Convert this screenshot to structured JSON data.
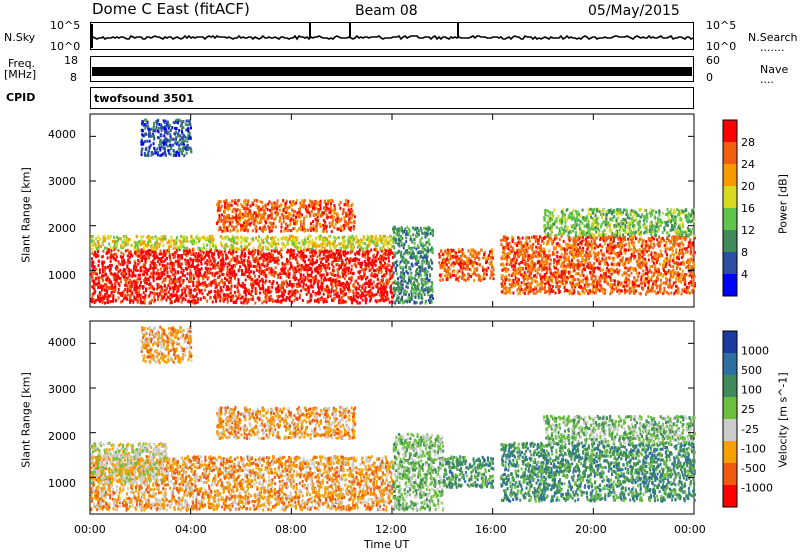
{
  "header": {
    "station": "Dome C East (fitACF)",
    "beam": "Beam 08",
    "date": "05/May/2015"
  },
  "noise_panel": {
    "left_label": "N.Sky",
    "right_label": "N.Search",
    "right_dots": ".......",
    "ticks_left": [
      "10^5",
      "10^0"
    ],
    "ticks_right": [
      "10^5",
      "10^0"
    ]
  },
  "freq_panel": {
    "left_label_1": "Freq.",
    "left_label_2": "[MHz]",
    "right_label": "Nave",
    "right_dots": "....",
    "ticks_left": [
      "18",
      "8"
    ],
    "ticks_right": [
      "60",
      "0"
    ]
  },
  "cpid_panel": {
    "label": "CPID",
    "program": "twofsound 3501"
  },
  "colors": {
    "power_scale": [
      "#0000ff",
      "#2c4fa0",
      "#3f8b5a",
      "#5ec44a",
      "#d8d820",
      "#f59a00",
      "#f06010",
      "#ff0000"
    ],
    "velocity_scale": [
      "#ff0000",
      "#f05a10",
      "#f5a000",
      "#cccccc",
      "#6cc040",
      "#3f8b5a",
      "#2c6fa0",
      "#1a3aa0"
    ]
  },
  "chart_data": [
    {
      "type": "heatmap",
      "title": "",
      "xlabel": "",
      "ylabel": "Slant Range [km]",
      "x_ticks": [
        "00:00",
        "04:00",
        "08:00",
        "12:00",
        "16:00",
        "20:00",
        "00:00"
      ],
      "xlim_hours": [
        0,
        24
      ],
      "y_ticks": [
        "4000",
        "3000",
        "2000",
        "1000"
      ],
      "ylim": [
        180,
        4500
      ],
      "colorbar": {
        "label": "Power [dB]",
        "tick_labels": [
          "28",
          "24",
          "20",
          "16",
          "12",
          "8",
          "4"
        ],
        "range": [
          0,
          32
        ]
      },
      "regions": [
        {
          "t0": 0.0,
          "t1": 12.0,
          "r0": 300,
          "r1": 1500,
          "level": 7
        },
        {
          "t0": 0.0,
          "t1": 12.0,
          "r0": 1500,
          "r1": 1800,
          "level": 4
        },
        {
          "t0": 5.0,
          "t1": 10.5,
          "r0": 1900,
          "r1": 2600,
          "level": 6
        },
        {
          "t0": 12.0,
          "t1": 13.6,
          "r0": 300,
          "r1": 2000,
          "level": 2
        },
        {
          "t0": 13.8,
          "t1": 16.0,
          "r0": 800,
          "r1": 1500,
          "level": 6
        },
        {
          "t0": 16.3,
          "t1": 24.0,
          "r0": 500,
          "r1": 1800,
          "level": 6
        },
        {
          "t0": 18.0,
          "t1": 24.0,
          "r0": 1800,
          "r1": 2400,
          "level": 3
        },
        {
          "t0": 2.0,
          "t1": 4.0,
          "r0": 3600,
          "r1": 4400,
          "level": 1
        }
      ]
    },
    {
      "type": "heatmap",
      "title": "",
      "xlabel": "Time UT",
      "ylabel": "Slant Range [km]",
      "x_ticks": [
        "00:00",
        "04:00",
        "08:00",
        "12:00",
        "16:00",
        "20:00",
        "00:00"
      ],
      "xlim_hours": [
        0,
        24
      ],
      "y_ticks": [
        "4000",
        "3000",
        "2000",
        "1000"
      ],
      "ylim": [
        180,
        4500
      ],
      "colorbar": {
        "label": "Velocity [m s^-1]",
        "tick_labels": [
          "1000",
          "500",
          "100",
          "25",
          "-25",
          "-100",
          "-500",
          "-1000"
        ],
        "range": [
          -1000,
          1000
        ]
      },
      "regions": [
        {
          "t0": 0.0,
          "t1": 12.0,
          "r0": 300,
          "r1": 1500,
          "level": 2
        },
        {
          "t0": 0.0,
          "t1": 3.0,
          "r0": 900,
          "r1": 1800,
          "level": 3
        },
        {
          "t0": 5.0,
          "t1": 10.5,
          "r0": 1900,
          "r1": 2600,
          "level": 2
        },
        {
          "t0": 12.0,
          "t1": 14.0,
          "r0": 300,
          "r1": 2000,
          "level": 4
        },
        {
          "t0": 14.0,
          "t1": 16.0,
          "r0": 800,
          "r1": 1500,
          "level": 5
        },
        {
          "t0": 16.3,
          "t1": 24.0,
          "r0": 500,
          "r1": 1800,
          "level": 5
        },
        {
          "t0": 18.0,
          "t1": 24.0,
          "r0": 1800,
          "r1": 2400,
          "level": 4
        },
        {
          "t0": 2.0,
          "t1": 4.0,
          "r0": 3600,
          "r1": 4400,
          "level": 2
        }
      ]
    }
  ]
}
